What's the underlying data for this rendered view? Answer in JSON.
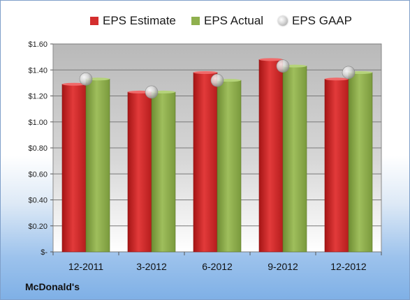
{
  "legend": {
    "estimate": "EPS Estimate",
    "actual": "EPS Actual",
    "gaap": "EPS GAAP"
  },
  "company": "McDonald's",
  "colors": {
    "estimate": "#d42e2e",
    "actual": "#8fb04e",
    "gaap": "#c8c8c8",
    "plot_bg": "#c9c9c9"
  },
  "chart_data": {
    "type": "bar",
    "categories": [
      "12-2011",
      "3-2012",
      "6-2012",
      "9-2012",
      "12-2012"
    ],
    "series": [
      {
        "name": "EPS Estimate",
        "type": "bar",
        "values": [
          1.29,
          1.23,
          1.38,
          1.48,
          1.33
        ]
      },
      {
        "name": "EPS Actual",
        "type": "bar",
        "values": [
          1.33,
          1.23,
          1.32,
          1.43,
          1.38
        ]
      },
      {
        "name": "EPS GAAP",
        "type": "scatter",
        "values": [
          1.33,
          1.23,
          1.32,
          1.43,
          1.38
        ]
      }
    ],
    "y_ticks": [
      "$-",
      "$0.20",
      "$0.40",
      "$0.60",
      "$0.80",
      "$1.00",
      "$1.20",
      "$1.40",
      "$1.60"
    ],
    "ylim": [
      0,
      1.6
    ],
    "grid": true,
    "legend_position": "top"
  }
}
